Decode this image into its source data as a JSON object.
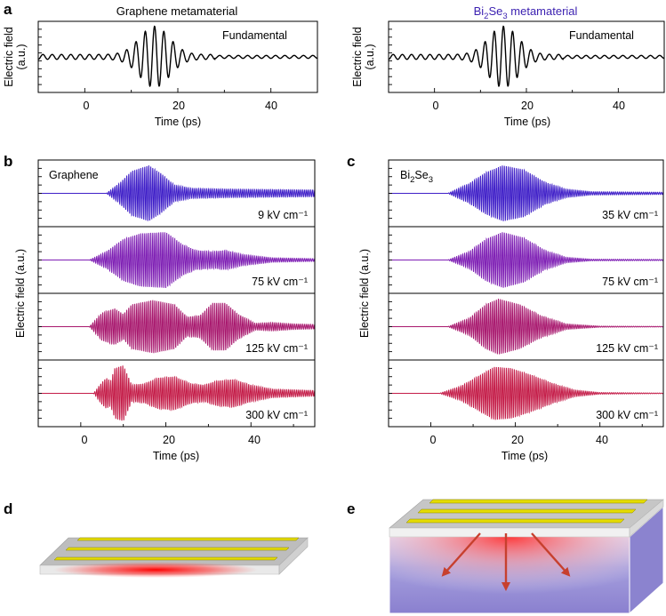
{
  "figure": {
    "panel_labels": [
      "a",
      "b",
      "c",
      "d",
      "e"
    ],
    "colors": {
      "fundamental": "#000000",
      "graphene": [
        "#3f1fc8",
        "#7e1fb4",
        "#a8186e",
        "#c41c48"
      ],
      "bi2se3": [
        "#3f1fc8",
        "#7e1fb4",
        "#a8186e",
        "#c41c48"
      ],
      "strip": "#e5dc00",
      "bulk": "#8b83cf",
      "heat": "#ff0000",
      "arrow": "#c7402e"
    }
  },
  "panel_a": {
    "left_title": "Graphene metamaterial",
    "right_title_main": "Bi",
    "right_title_sub1": "2",
    "right_title_mid": "Se",
    "right_title_sub2": "3",
    "right_title_tail": " metamaterial",
    "right_title_color": "#3a1fb0",
    "ylabel_line1": "Electric field",
    "ylabel_line2": "(a.u.)",
    "xlabel": "Time (ps)",
    "annotation": "Fundamental"
  },
  "panel_b": {
    "label": "Graphene",
    "ylabel": "Electric field (a.u.)",
    "xlabel": "Time (ps)",
    "fields": [
      "9 kV cm⁻¹",
      "75 kV cm⁻¹",
      "125 kV cm⁻¹",
      "300 kV cm⁻¹"
    ]
  },
  "panel_c": {
    "label_main": "Bi",
    "label_sub1": "2",
    "label_mid": "Se",
    "label_sub2": "3",
    "ylabel": "Electric field (a.u.)",
    "xlabel": "Time (ps)",
    "fields": [
      "35 kV cm⁻¹",
      "75 kV cm⁻¹",
      "125 kV cm⁻¹",
      "300 kV cm⁻¹"
    ]
  },
  "chart_data": [
    {
      "type": "line",
      "panel": "a-left",
      "title": "Graphene metamaterial",
      "xlabel": "Time (ps)",
      "ylabel": "Electric field (a.u.)",
      "xlim": [
        -10,
        50
      ],
      "xticks": [
        0,
        20,
        40
      ],
      "series": [
        {
          "name": "Fundamental",
          "waveform": {
            "center_ps": 15,
            "width_ps": 4.5,
            "period_ps": 2.0,
            "amplitude": 1.0,
            "baseline_ripple": 0.08
          }
        }
      ]
    },
    {
      "type": "line",
      "panel": "a-right",
      "title": "Bi2Se3 metamaterial",
      "xlabel": "Time (ps)",
      "ylabel": "Electric field (a.u.)",
      "xlim": [
        -10,
        50
      ],
      "xticks": [
        0,
        20,
        40
      ],
      "series": [
        {
          "name": "Fundamental",
          "waveform": {
            "center_ps": 15,
            "width_ps": 4.5,
            "period_ps": 2.0,
            "amplitude": 1.0,
            "baseline_ripple": 0.08
          }
        }
      ]
    },
    {
      "type": "line",
      "panel": "b",
      "title": "Graphene",
      "xlabel": "Time (ps)",
      "ylabel": "Electric field (a.u.)",
      "xlim": [
        -10,
        55
      ],
      "xticks": [
        0,
        20,
        40
      ],
      "series": [
        {
          "name": "9 kV cm⁻¹",
          "envelope": [
            [
              6,
              0
            ],
            [
              9,
              0.35
            ],
            [
              12,
              0.8
            ],
            [
              16,
              1.0
            ],
            [
              19,
              0.7
            ],
            [
              22,
              0.3
            ],
            [
              26,
              0.18
            ],
            [
              35,
              0.15
            ],
            [
              55,
              0.12
            ]
          ]
        },
        {
          "name": "75 kV cm⁻¹",
          "envelope": [
            [
              2,
              0
            ],
            [
              6,
              0.3
            ],
            [
              10,
              0.75
            ],
            [
              14,
              0.95
            ],
            [
              20,
              1.0
            ],
            [
              24,
              0.55
            ],
            [
              27,
              0.35
            ],
            [
              31,
              0.3
            ],
            [
              34,
              0.35
            ],
            [
              38,
              0.2
            ],
            [
              45,
              0.08
            ],
            [
              55,
              0.05
            ]
          ]
        },
        {
          "name": "125 kV cm⁻¹",
          "envelope": [
            [
              2,
              0
            ],
            [
              5,
              0.5
            ],
            [
              8,
              0.65
            ],
            [
              10,
              0.45
            ],
            [
              12,
              0.8
            ],
            [
              17,
              0.95
            ],
            [
              22,
              0.8
            ],
            [
              25,
              0.35
            ],
            [
              28,
              0.4
            ],
            [
              31,
              0.85
            ],
            [
              34,
              0.85
            ],
            [
              37,
              0.45
            ],
            [
              41,
              0.12
            ],
            [
              45,
              0.15
            ],
            [
              50,
              0.1
            ],
            [
              55,
              0.08
            ]
          ]
        },
        {
          "name": "300 kV cm⁻¹",
          "envelope": [
            [
              3,
              0
            ],
            [
              5,
              0.4
            ],
            [
              6,
              0.55
            ],
            [
              7,
              0.45
            ],
            [
              8,
              0.9
            ],
            [
              10,
              1.0
            ],
            [
              12,
              0.3
            ],
            [
              15,
              0.35
            ],
            [
              18,
              0.55
            ],
            [
              22,
              0.6
            ],
            [
              26,
              0.35
            ],
            [
              29,
              0.3
            ],
            [
              32,
              0.45
            ],
            [
              36,
              0.5
            ],
            [
              40,
              0.3
            ],
            [
              45,
              0.15
            ],
            [
              55,
              0.1
            ]
          ]
        }
      ]
    },
    {
      "type": "line",
      "panel": "c",
      "title": "Bi2Se3",
      "xlabel": "Time (ps)",
      "ylabel": "Electric field (a.u.)",
      "xlim": [
        -10,
        55
      ],
      "xticks": [
        0,
        20,
        40
      ],
      "series": [
        {
          "name": "35 kV cm⁻¹",
          "envelope": [
            [
              4,
              0
            ],
            [
              9,
              0.35
            ],
            [
              13,
              0.75
            ],
            [
              17,
              1.0
            ],
            [
              22,
              0.85
            ],
            [
              27,
              0.4
            ],
            [
              32,
              0.15
            ],
            [
              38,
              0.06
            ],
            [
              55,
              0.04
            ]
          ]
        },
        {
          "name": "75 kV cm⁻¹",
          "envelope": [
            [
              4,
              0
            ],
            [
              9,
              0.3
            ],
            [
              13,
              0.75
            ],
            [
              17,
              1.0
            ],
            [
              22,
              0.8
            ],
            [
              27,
              0.35
            ],
            [
              32,
              0.1
            ],
            [
              38,
              0.03
            ],
            [
              55,
              0.02
            ]
          ]
        },
        {
          "name": "125 kV cm⁻¹",
          "envelope": [
            [
              4,
              0
            ],
            [
              9,
              0.3
            ],
            [
              13,
              0.8
            ],
            [
              16,
              1.0
            ],
            [
              21,
              0.8
            ],
            [
              26,
              0.4
            ],
            [
              32,
              0.1
            ],
            [
              40,
              0.02
            ],
            [
              55,
              0.01
            ]
          ]
        },
        {
          "name": "300 kV cm⁻¹",
          "envelope": [
            [
              2,
              0
            ],
            [
              7,
              0.25
            ],
            [
              11,
              0.6
            ],
            [
              15,
              0.95
            ],
            [
              19,
              0.9
            ],
            [
              24,
              0.65
            ],
            [
              29,
              0.35
            ],
            [
              34,
              0.12
            ],
            [
              40,
              0.03
            ],
            [
              55,
              0.01
            ]
          ]
        }
      ]
    }
  ]
}
